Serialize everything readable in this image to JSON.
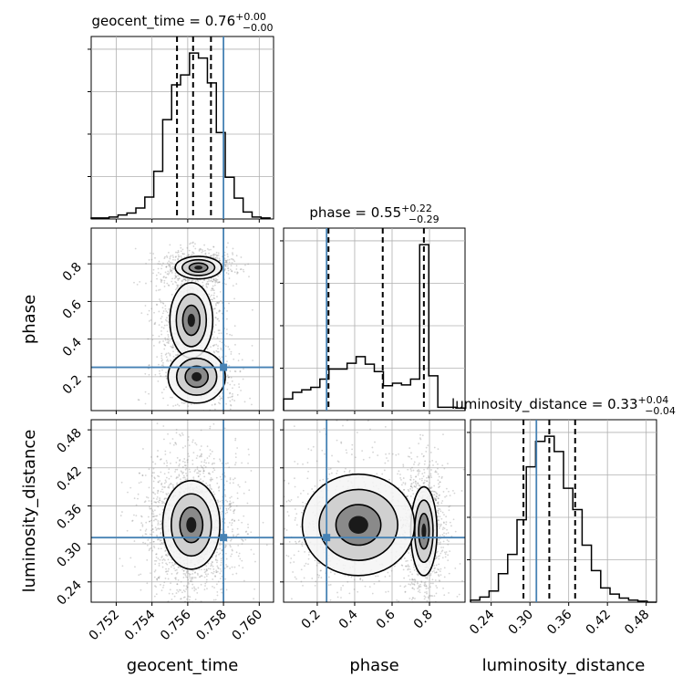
{
  "chart_data": {
    "type": "corner",
    "parameters": [
      "geocent_time",
      "phase",
      "luminosity_distance"
    ],
    "axis_labels": {
      "geocent_time": "geocent_time",
      "phase": "phase",
      "luminosity_distance": "luminosity_distance"
    },
    "ranges": {
      "geocent_time": [
        0.7506,
        0.7608
      ],
      "phase": [
        0.02,
        0.99
      ],
      "luminosity_distance": [
        0.208,
        0.496
      ]
    },
    "ticks": {
      "geocent_time": [
        0.752,
        0.754,
        0.756,
        0.758,
        0.76
      ],
      "phase": [
        0.2,
        0.4,
        0.6,
        0.8
      ],
      "luminosity_distance": [
        0.24,
        0.3,
        0.36,
        0.42,
        0.48
      ]
    },
    "tick_labels": {
      "geocent_time": [
        "0.752",
        "0.754",
        "0.756",
        "0.758",
        "0.760"
      ],
      "phase": [
        "0.2",
        "0.4",
        "0.6",
        "0.8"
      ],
      "luminosity_distance": [
        "0.24",
        "0.30",
        "0.36",
        "0.42",
        "0.48"
      ]
    },
    "truths": {
      "geocent_time": 0.758,
      "phase": 0.25,
      "luminosity_distance": 0.31
    },
    "titles": [
      {
        "param": "geocent_time",
        "text": "geocent_time = 0.76",
        "plus": "+0.00",
        "minus": "−0.00"
      },
      {
        "param": "phase",
        "text": "phase = 0.55",
        "plus": "+0.22",
        "minus": "−0.29"
      },
      {
        "param": "luminosity_distance",
        "text": "luminosity_distance = 0.33",
        "plus": "+0.04",
        "minus": "−0.04"
      }
    ],
    "quantiles": {
      "geocent_time": [
        0.7554,
        0.7563,
        0.7573
      ],
      "phase": [
        0.26,
        0.55,
        0.77
      ],
      "luminosity_distance": [
        0.29,
        0.33,
        0.37
      ]
    },
    "histograms": {
      "geocent_time": {
        "edges": [
          0.7506,
          0.7511,
          0.7516,
          0.7521,
          0.7526,
          0.7531,
          0.7536,
          0.7541,
          0.7546,
          0.7551,
          0.7556,
          0.7561,
          0.7566,
          0.7571,
          0.7576,
          0.7581,
          0.7586,
          0.7591,
          0.7596,
          0.7601,
          0.7606
        ],
        "counts": [
          1,
          1,
          2,
          4,
          6,
          11,
          22,
          48,
          100,
          135,
          145,
          167,
          162,
          137,
          87,
          42,
          21,
          7,
          2,
          1
        ]
      },
      "phase": {
        "edges": [
          0.02,
          0.0685,
          0.117,
          0.1655,
          0.214,
          0.2625,
          0.311,
          0.3595,
          0.408,
          0.4565,
          0.505,
          0.5535,
          0.602,
          0.6505,
          0.699,
          0.7475,
          0.796,
          0.8445,
          0.893,
          0.9415,
          0.99
        ],
        "counts": [
          14,
          22,
          25,
          28,
          38,
          50,
          50,
          57,
          65,
          56,
          47,
          30,
          33,
          31,
          38,
          200,
          42,
          4,
          4,
          3
        ]
      },
      "luminosity_distance": {
        "edges": [
          0.208,
          0.2224,
          0.2368,
          0.2512,
          0.2656,
          0.28,
          0.2944,
          0.3088,
          0.3232,
          0.3376,
          0.352,
          0.3664,
          0.3808,
          0.3952,
          0.4096,
          0.424,
          0.4384,
          0.4528,
          0.4672,
          0.4816,
          0.496
        ],
        "counts": [
          2,
          5,
          11,
          28,
          47,
          81,
          133,
          158,
          163,
          148,
          112,
          91,
          56,
          31,
          14,
          8,
          4,
          2,
          1,
          0
        ]
      }
    },
    "density_2d": [
      {
        "x": "geocent_time",
        "y": "phase",
        "modes": [
          {
            "x": 0.7566,
            "y": 0.78,
            "sx": 0.00065,
            "sy": 0.03,
            "w": 0.35
          },
          {
            "x": 0.7562,
            "y": 0.5,
            "sx": 0.0006,
            "sy": 0.1,
            "w": 0.45
          },
          {
            "x": 0.7565,
            "y": 0.2,
            "sx": 0.0008,
            "sy": 0.07,
            "w": 0.2
          }
        ]
      },
      {
        "x": "geocent_time",
        "y": "luminosity_distance",
        "modes": [
          {
            "x": 0.7562,
            "y": 0.33,
            "sx": 0.0008,
            "sy": 0.035,
            "w": 1.0
          }
        ]
      },
      {
        "x": "phase",
        "y": "luminosity_distance",
        "modes": [
          {
            "x": 0.77,
            "y": 0.32,
            "sx": 0.035,
            "sy": 0.035,
            "w": 0.55
          },
          {
            "x": 0.42,
            "y": 0.33,
            "sx": 0.15,
            "sy": 0.04,
            "w": 0.45
          }
        ]
      }
    ],
    "colors": {
      "truth": "#4682b4",
      "hist": "#000000",
      "points": "#888888",
      "grid": "#b0b0b0"
    },
    "grid": true
  }
}
